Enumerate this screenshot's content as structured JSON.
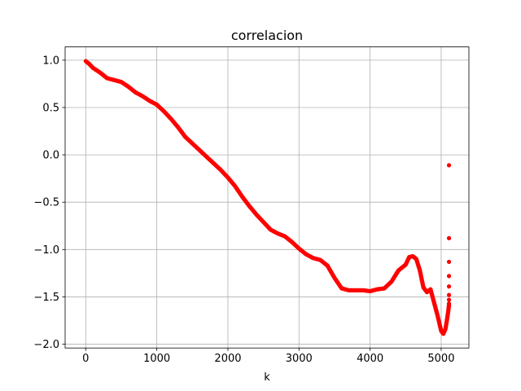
{
  "chart_data": {
    "type": "scatter",
    "title": "correlacion",
    "xlabel": "k",
    "ylabel": "",
    "xlim": [
      -290,
      5390
    ],
    "ylim": [
      -2.04,
      1.14
    ],
    "xticks": [
      0,
      1000,
      2000,
      3000,
      4000,
      5000
    ],
    "xtick_labels": [
      "0",
      "1000",
      "2000",
      "3000",
      "4000",
      "5000"
    ],
    "yticks": [
      1.0,
      0.5,
      0.0,
      -0.5,
      -1.0,
      -1.5,
      -2.0
    ],
    "ytick_labels": [
      "1.0",
      "0.5",
      "0.0",
      "−0.5",
      "−1.0",
      "−1.5",
      "−2.0"
    ],
    "grid": true,
    "marker_color": "#ff0000",
    "series": [
      {
        "x": [
          0,
          50,
          100,
          200,
          300,
          400,
          500,
          600,
          700,
          800,
          900,
          1000,
          1100,
          1200,
          1300,
          1400,
          1500,
          1600,
          1700,
          1800,
          1900,
          2000,
          2100,
          2200,
          2300,
          2400,
          2500,
          2600,
          2700,
          2800,
          2900,
          3000,
          3100,
          3200,
          3300,
          3400,
          3500,
          3600,
          3700,
          3800,
          3900,
          4000,
          4100,
          4200,
          4300,
          4400,
          4500,
          4550,
          4600,
          4650,
          4700,
          4750,
          4800,
          4850,
          4900,
          4950,
          5000,
          5030,
          5060,
          5080,
          5100,
          5110
        ],
        "y": [
          0.99,
          0.96,
          0.92,
          0.87,
          0.81,
          0.79,
          0.77,
          0.72,
          0.66,
          0.62,
          0.57,
          0.53,
          0.46,
          0.38,
          0.29,
          0.19,
          0.12,
          0.05,
          -0.02,
          -0.09,
          -0.16,
          -0.24,
          -0.33,
          -0.44,
          -0.54,
          -0.63,
          -0.71,
          -0.79,
          -0.83,
          -0.86,
          -0.92,
          -0.99,
          -1.05,
          -1.09,
          -1.11,
          -1.17,
          -1.3,
          -1.41,
          -1.43,
          -1.43,
          -1.43,
          -1.44,
          -1.42,
          -1.41,
          -1.34,
          -1.22,
          -1.16,
          -1.08,
          -1.07,
          -1.1,
          -1.22,
          -1.4,
          -1.45,
          -1.42,
          -1.56,
          -1.7,
          -1.86,
          -1.89,
          -1.84,
          -1.75,
          -1.65,
          -1.58
        ]
      },
      {
        "x": [
          5110,
          5110,
          5110,
          5110,
          5110,
          5110,
          5110,
          5110,
          5110
        ],
        "y": [
          -0.11,
          -0.88,
          -1.13,
          -1.28,
          -1.39,
          -1.48,
          -1.53,
          -1.57,
          -1.6
        ]
      }
    ]
  }
}
